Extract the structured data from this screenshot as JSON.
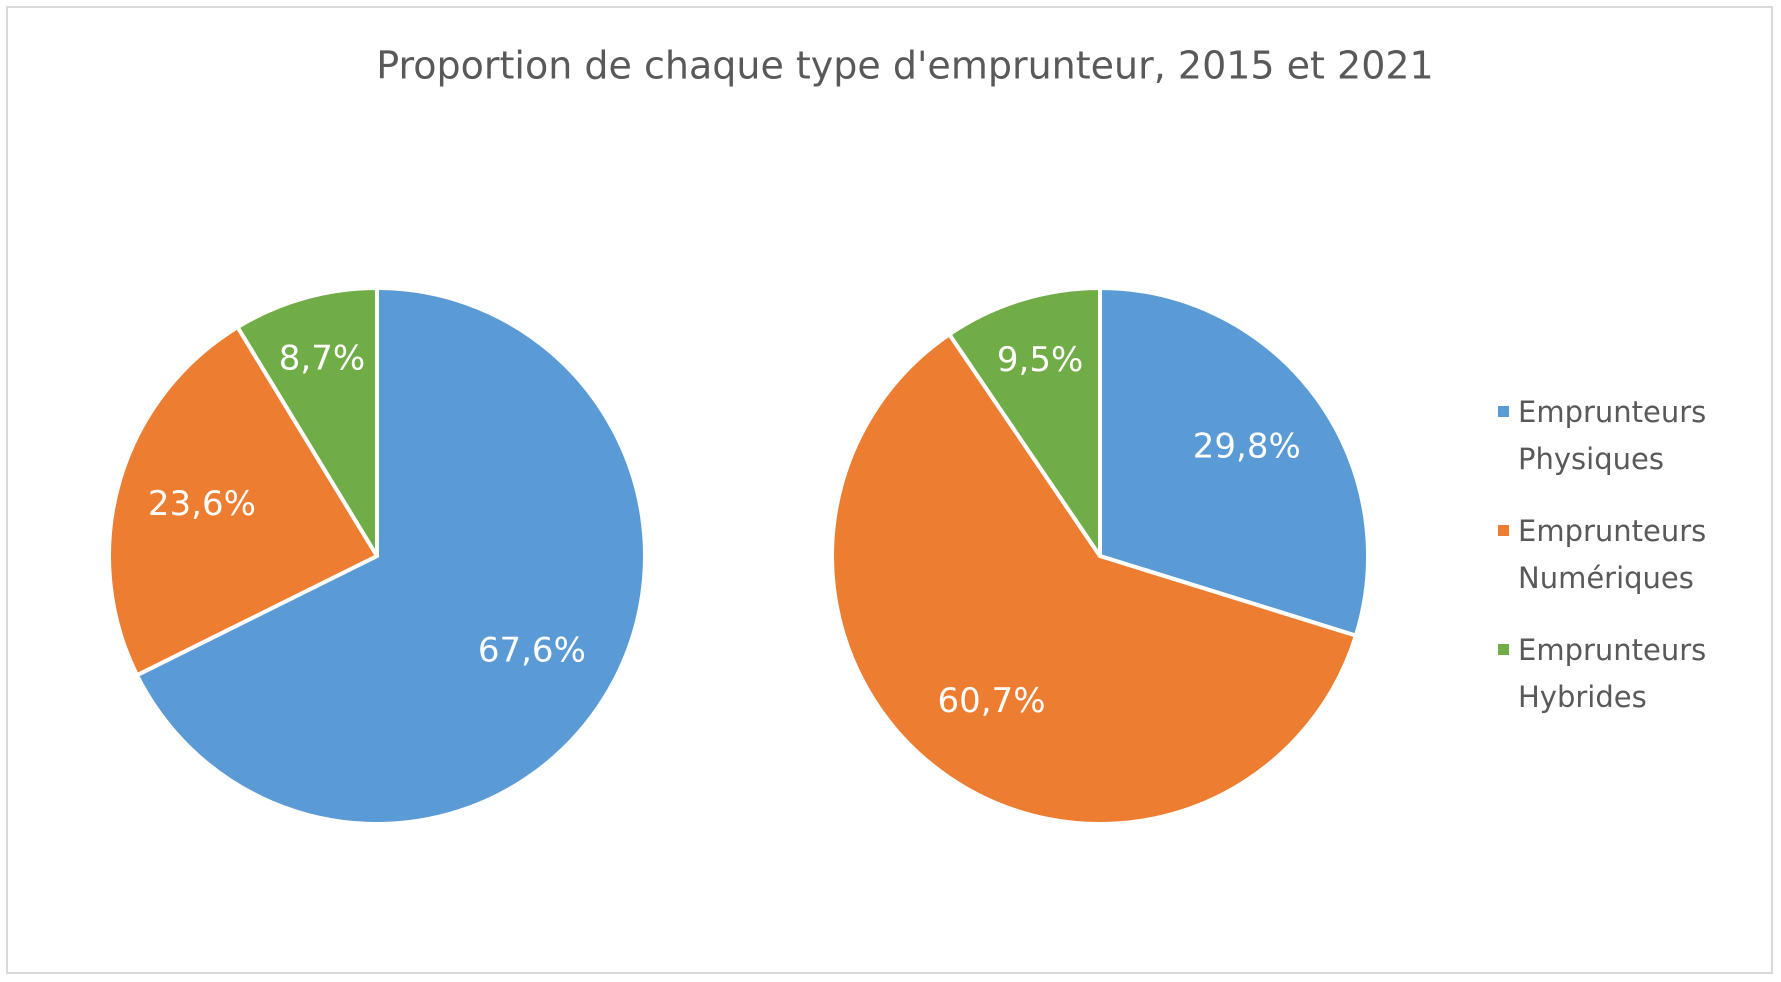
{
  "chart_data": {
    "type": "pie",
    "title": "Proportion de chaque type d'emprunteur, 2015 et 2021",
    "categories": [
      "Emprunteurs Physiques",
      "Emprunteurs Numériques",
      "Emprunteurs Hybrides"
    ],
    "colors": [
      "#5b9bd5",
      "#ed7d31",
      "#70ad47"
    ],
    "series": [
      {
        "values": [
          67.6,
          23.6,
          8.7
        ],
        "value_labels": [
          "67,6%",
          "23,6%",
          "8,7%"
        ]
      },
      {
        "values": [
          29.8,
          60.7,
          9.5
        ],
        "value_labels": [
          "29,8%",
          "60,7%",
          "9,5%"
        ]
      }
    ]
  }
}
